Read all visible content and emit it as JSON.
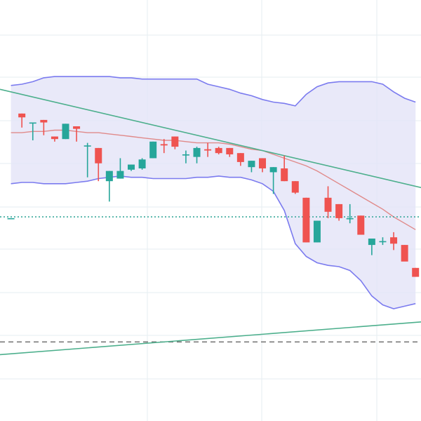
{
  "chart_data": {
    "type": "candlestick",
    "title": "",
    "xlabel": "",
    "ylabel": "",
    "x": [
      0,
      1,
      2,
      3,
      4,
      5,
      6,
      7,
      8,
      9,
      10,
      11,
      12,
      13,
      14,
      15,
      16,
      17,
      18,
      19,
      20,
      21,
      22,
      23,
      24,
      25,
      26,
      27,
      28,
      29,
      30,
      31,
      32,
      33,
      34,
      35,
      36,
      37
    ],
    "ohlc": [
      {
        "o": 0.9,
        "h": 0.9,
        "l": 0.9,
        "c": 0.9
      },
      {
        "o": 9.1,
        "h": 9.1,
        "l": 8.0,
        "c": 8.8
      },
      {
        "o": 8.4,
        "h": 8.4,
        "l": 7.0,
        "c": 8.4
      },
      {
        "o": 8.6,
        "h": 8.6,
        "l": 7.4,
        "c": 8.4
      },
      {
        "o": 7.3,
        "h": 7.3,
        "l": 6.9,
        "c": 7.1
      },
      {
        "o": 7.1,
        "h": 8.3,
        "l": 7.1,
        "c": 8.3
      },
      {
        "o": 8.1,
        "h": 8.1,
        "l": 6.9,
        "c": 7.9
      },
      {
        "o": 6.6,
        "h": 6.8,
        "l": 4.1,
        "c": 6.6
      },
      {
        "o": 6.4,
        "h": 6.4,
        "l": 3.8,
        "c": 5.2
      },
      {
        "o": 3.8,
        "h": 4.6,
        "l": 2.2,
        "c": 4.6
      },
      {
        "o": 4.0,
        "h": 5.6,
        "l": 4.0,
        "c": 4.6
      },
      {
        "o": 4.7,
        "h": 5.1,
        "l": 4.6,
        "c": 5.1
      },
      {
        "o": 4.8,
        "h": 5.6,
        "l": 4.7,
        "c": 5.5
      },
      {
        "o": 5.6,
        "h": 6.9,
        "l": 5.6,
        "c": 6.9
      },
      {
        "o": 6.7,
        "h": 7.1,
        "l": 6.0,
        "c": 6.6
      },
      {
        "o": 7.3,
        "h": 7.3,
        "l": 6.3,
        "c": 6.5
      },
      {
        "o": 5.9,
        "h": 6.2,
        "l": 5.2,
        "c": 5.9
      },
      {
        "o": 5.7,
        "h": 6.5,
        "l": 5.2,
        "c": 6.4
      },
      {
        "o": 6.3,
        "h": 6.8,
        "l": 5.7,
        "c": 6.2
      },
      {
        "o": 6.4,
        "h": 6.5,
        "l": 5.9,
        "c": 6.0
      },
      {
        "o": 6.4,
        "h": 6.4,
        "l": 5.7,
        "c": 5.9
      },
      {
        "o": 6.0,
        "h": 6.0,
        "l": 5.0,
        "c": 5.3
      },
      {
        "o": 4.9,
        "h": 5.4,
        "l": 4.5,
        "c": 5.4
      },
      {
        "o": 5.6,
        "h": 5.6,
        "l": 4.5,
        "c": 4.8
      },
      {
        "o": 4.5,
        "h": 4.9,
        "l": 2.8,
        "c": 4.9
      },
      {
        "o": 4.8,
        "h": 5.8,
        "l": 3.8,
        "c": 3.8
      },
      {
        "o": 3.8,
        "h": 3.8,
        "l": 2.8,
        "c": 2.9
      },
      {
        "o": 2.5,
        "h": 2.5,
        "l": -1.0,
        "c": -1.0
      },
      {
        "o": -1.0,
        "h": 0.7,
        "l": -1.0,
        "c": 0.7
      },
      {
        "o": 2.5,
        "h": 3.4,
        "l": 0.9,
        "c": 1.4
      },
      {
        "o": 2.0,
        "h": 2.0,
        "l": 0.7,
        "c": 0.9
      },
      {
        "o": 0.9,
        "h": 2.0,
        "l": 0.5,
        "c": 0.9
      },
      {
        "o": 1.1,
        "h": 1.1,
        "l": -0.2,
        "c": -0.4
      },
      {
        "o": -1.2,
        "h": -0.8,
        "l": -2.0,
        "c": -0.7
      },
      {
        "o": -0.9,
        "h": -0.6,
        "l": -1.2,
        "c": -0.9
      },
      {
        "o": -0.6,
        "h": -0.2,
        "l": -1.6,
        "c": -1.1
      },
      {
        "o": -1.2,
        "h": -1.2,
        "l": -2.4,
        "c": -2.5
      },
      {
        "o": -3.0,
        "h": -3.0,
        "l": -3.7,
        "c": -3.7
      }
    ],
    "bollinger": {
      "upper": [
        11.3,
        11.4,
        11.6,
        11.9,
        12.0,
        12.0,
        12.0,
        12.0,
        12.0,
        12.0,
        11.9,
        11.9,
        11.8,
        11.8,
        11.8,
        11.8,
        11.8,
        11.8,
        11.4,
        11.2,
        11.0,
        10.7,
        10.5,
        10.2,
        10.0,
        9.9,
        9.7,
        10.6,
        11.2,
        11.5,
        11.6,
        11.6,
        11.6,
        11.6,
        11.4,
        10.8,
        10.3,
        10.0
      ],
      "middle": [
        7.6,
        7.6,
        7.7,
        7.7,
        7.8,
        7.8,
        7.7,
        7.6,
        7.6,
        7.5,
        7.4,
        7.3,
        7.2,
        7.1,
        7.0,
        7.0,
        6.9,
        6.8,
        6.8,
        6.8,
        6.7,
        6.5,
        6.3,
        6.2,
        5.9,
        5.6,
        5.3,
        5.0,
        4.6,
        4.1,
        3.6,
        3.1,
        2.6,
        2.1,
        1.6,
        1.0,
        0.5,
        0.0
      ],
      "lower": [
        3.6,
        3.7,
        3.7,
        3.6,
        3.6,
        3.6,
        3.7,
        3.8,
        4.0,
        4.1,
        4.2,
        4.1,
        4.1,
        4.0,
        4.0,
        4.0,
        4.0,
        4.1,
        4.1,
        4.2,
        4.1,
        4.1,
        3.9,
        3.6,
        3.0,
        1.5,
        -1.1,
        -2.1,
        -2.6,
        -2.8,
        -2.9,
        -3.2,
        -4.0,
        -5.2,
        -5.9,
        -6.2,
        -6.0,
        -5.8
      ]
    },
    "trendlines": [
      {
        "x0": -1,
        "y0": 11.0,
        "x1": 38,
        "y1": 3.2
      },
      {
        "x0": -1,
        "y0": -9.8,
        "x1": 38,
        "y1": -7.2
      }
    ],
    "hlines": [
      {
        "y": 1.0,
        "style": "dotted"
      },
      {
        "y": -8.8,
        "style": "dashed"
      }
    ],
    "ylim": [
      -15,
      18
    ],
    "xlim": [
      -1,
      37.5
    ],
    "grid": true,
    "colors": {
      "up": "#26a69a",
      "down": "#ef5350",
      "band_fill": "#e3e3f7",
      "band_line": "#7b7bef",
      "middle_line": "#e08a8a",
      "trend_line": "#4caf8c",
      "dotted_line": "#3aa99c",
      "dashed_line": "#7a7a7a",
      "grid": "#e6eef2"
    }
  }
}
